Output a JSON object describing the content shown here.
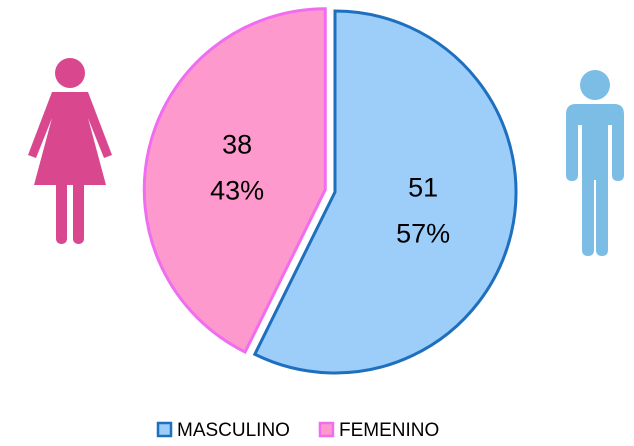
{
  "chart_data": {
    "type": "pie",
    "categories": [
      "MASCULINO",
      "FEMENINO"
    ],
    "values": [
      51,
      38
    ],
    "percentages": [
      {
        "value": 57,
        "label": "57%"
      },
      {
        "value": 43,
        "label": "43%"
      }
    ],
    "colors": [
      "#9dcdf9",
      "#fd99cc"
    ],
    "legend": "bottom"
  }
}
